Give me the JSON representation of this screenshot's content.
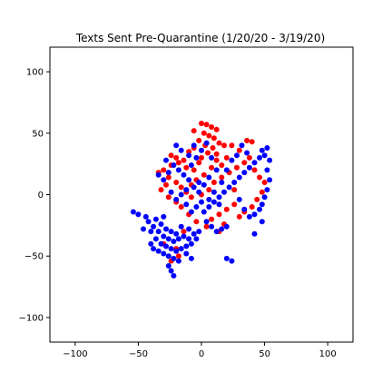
{
  "chart_data": {
    "type": "scatter",
    "title": "Texts Sent Pre-Quarantine (1/20/20 - 3/19/20)",
    "xlabel": "",
    "ylabel": "",
    "xlim": [
      -120,
      120
    ],
    "ylim": [
      -120,
      120
    ],
    "x_ticks": [
      -100,
      -50,
      0,
      50,
      100
    ],
    "y_ticks": [
      -100,
      -50,
      0,
      50,
      100
    ],
    "x_tick_labels": [
      "−100",
      "−50",
      "0",
      "50",
      "100"
    ],
    "y_tick_labels": [
      "−100",
      "−50",
      "0",
      "50",
      "100"
    ],
    "grid": false,
    "legend": "none",
    "series": [
      {
        "color": "#ff0000",
        "points": [
          [
            0,
            58
          ],
          [
            4,
            57
          ],
          [
            8,
            55
          ],
          [
            12,
            53
          ],
          [
            2,
            50
          ],
          [
            6,
            48
          ],
          [
            10,
            46
          ],
          [
            -2,
            44
          ],
          [
            14,
            42
          ],
          [
            18,
            40
          ],
          [
            -6,
            38
          ],
          [
            -10,
            35
          ],
          [
            5,
            34
          ],
          [
            12,
            33
          ],
          [
            20,
            30
          ],
          [
            -14,
            28
          ],
          [
            -18,
            26
          ],
          [
            -24,
            24
          ],
          [
            -30,
            20
          ],
          [
            -34,
            18
          ],
          [
            -26,
            14
          ],
          [
            -20,
            10
          ],
          [
            -16,
            6
          ],
          [
            -28,
            8
          ],
          [
            -12,
            2
          ],
          [
            -8,
            -2
          ],
          [
            0,
            0
          ],
          [
            6,
            4
          ],
          [
            10,
            10
          ],
          [
            16,
            14
          ],
          [
            22,
            18
          ],
          [
            28,
            22
          ],
          [
            34,
            26
          ],
          [
            38,
            30
          ],
          [
            36,
            44
          ],
          [
            40,
            43
          ],
          [
            42,
            20
          ],
          [
            46,
            14
          ],
          [
            50,
            10
          ],
          [
            48,
            2
          ],
          [
            44,
            -4
          ],
          [
            40,
            -10
          ],
          [
            34,
            -14
          ],
          [
            30,
            -18
          ],
          [
            26,
            -8
          ],
          [
            20,
            -12
          ],
          [
            14,
            -16
          ],
          [
            8,
            -20
          ],
          [
            4,
            -26
          ],
          [
            -4,
            -22
          ],
          [
            -10,
            -16
          ],
          [
            -16,
            -10
          ],
          [
            -20,
            -6
          ],
          [
            -26,
            -2
          ],
          [
            -32,
            4
          ],
          [
            -2,
            26
          ],
          [
            -6,
            20
          ],
          [
            2,
            16
          ],
          [
            8,
            22
          ],
          [
            12,
            28
          ],
          [
            16,
            24
          ],
          [
            -12,
            22
          ],
          [
            -20,
            30
          ],
          [
            -24,
            32
          ],
          [
            24,
            40
          ],
          [
            30,
            36
          ],
          [
            -6,
            52
          ],
          [
            3,
            40
          ],
          [
            9,
            38
          ],
          [
            -14,
            -30
          ],
          [
            -20,
            -44
          ],
          [
            -24,
            -54
          ],
          [
            -18,
            -50
          ],
          [
            -30,
            -40
          ],
          [
            14,
            -30
          ],
          [
            18,
            -24
          ],
          [
            -8,
            8
          ],
          [
            -4,
            12
          ],
          [
            0,
            30
          ],
          [
            26,
            4
          ]
        ]
      },
      {
        "color": "#0000ff",
        "points": [
          [
            -36,
            -20
          ],
          [
            -32,
            -24
          ],
          [
            -28,
            -28
          ],
          [
            -24,
            -30
          ],
          [
            -20,
            -32
          ],
          [
            -38,
            -26
          ],
          [
            -34,
            -30
          ],
          [
            -30,
            -34
          ],
          [
            -26,
            -36
          ],
          [
            -22,
            -38
          ],
          [
            -18,
            -36
          ],
          [
            -14,
            -34
          ],
          [
            -10,
            -36
          ],
          [
            -40,
            -30
          ],
          [
            -36,
            -36
          ],
          [
            -32,
            -40
          ],
          [
            -28,
            -42
          ],
          [
            -24,
            -44
          ],
          [
            -20,
            -46
          ],
          [
            -16,
            -44
          ],
          [
            -12,
            -42
          ],
          [
            -8,
            -40
          ],
          [
            -34,
            -46
          ],
          [
            -30,
            -48
          ],
          [
            -26,
            -50
          ],
          [
            -22,
            -52
          ],
          [
            -18,
            -54
          ],
          [
            -42,
            -22
          ],
          [
            -44,
            -18
          ],
          [
            -46,
            -28
          ],
          [
            -40,
            -40
          ],
          [
            -38,
            -44
          ],
          [
            -26,
            -58
          ],
          [
            -24,
            -62
          ],
          [
            -22,
            -66
          ],
          [
            -10,
            -28
          ],
          [
            -6,
            -32
          ],
          [
            -4,
            -36
          ],
          [
            -50,
            -16
          ],
          [
            -54,
            -14
          ],
          [
            -30,
            -18
          ],
          [
            -16,
            -26
          ],
          [
            -2,
            -30
          ],
          [
            -12,
            -48
          ],
          [
            -8,
            -52
          ],
          [
            4,
            -22
          ],
          [
            8,
            -26
          ],
          [
            12,
            -30
          ],
          [
            16,
            -28
          ],
          [
            20,
            -26
          ],
          [
            2,
            -14
          ],
          [
            6,
            -10
          ],
          [
            10,
            -6
          ],
          [
            14,
            -2
          ],
          [
            18,
            2
          ],
          [
            22,
            6
          ],
          [
            26,
            10
          ],
          [
            30,
            14
          ],
          [
            34,
            18
          ],
          [
            38,
            22
          ],
          [
            42,
            26
          ],
          [
            46,
            30
          ],
          [
            48,
            36
          ],
          [
            52,
            38
          ],
          [
            50,
            32
          ],
          [
            54,
            28
          ],
          [
            52,
            20
          ],
          [
            54,
            12
          ],
          [
            52,
            4
          ],
          [
            50,
            -2
          ],
          [
            48,
            -8
          ],
          [
            46,
            -12
          ],
          [
            42,
            -16
          ],
          [
            38,
            -18
          ],
          [
            34,
            -12
          ],
          [
            30,
            -4
          ],
          [
            -2,
            2
          ],
          [
            -6,
            6
          ],
          [
            -10,
            12
          ],
          [
            -14,
            16
          ],
          [
            -18,
            20
          ],
          [
            -22,
            24
          ],
          [
            -26,
            18
          ],
          [
            -30,
            12
          ],
          [
            -34,
            16
          ],
          [
            -28,
            28
          ],
          [
            -24,
            2
          ],
          [
            -20,
            -4
          ],
          [
            -16,
            0
          ],
          [
            -12,
            4
          ],
          [
            -8,
            24
          ],
          [
            -4,
            30
          ],
          [
            0,
            36
          ],
          [
            4,
            42
          ],
          [
            8,
            30
          ],
          [
            12,
            20
          ],
          [
            16,
            10
          ],
          [
            20,
            20
          ],
          [
            24,
            28
          ],
          [
            28,
            32
          ],
          [
            32,
            40
          ],
          [
            36,
            34
          ],
          [
            -2,
            10
          ],
          [
            2,
            8
          ],
          [
            6,
            14
          ],
          [
            10,
            2
          ],
          [
            14,
            -8
          ],
          [
            6,
            -4
          ],
          [
            0,
            -6
          ],
          [
            -4,
            -10
          ],
          [
            -8,
            -14
          ],
          [
            -12,
            -8
          ],
          [
            20,
            -52
          ],
          [
            24,
            -54
          ],
          [
            42,
            -32
          ],
          [
            48,
            -22
          ],
          [
            -6,
            40
          ],
          [
            -10,
            32
          ],
          [
            -16,
            36
          ],
          [
            -20,
            40
          ]
        ]
      }
    ]
  }
}
